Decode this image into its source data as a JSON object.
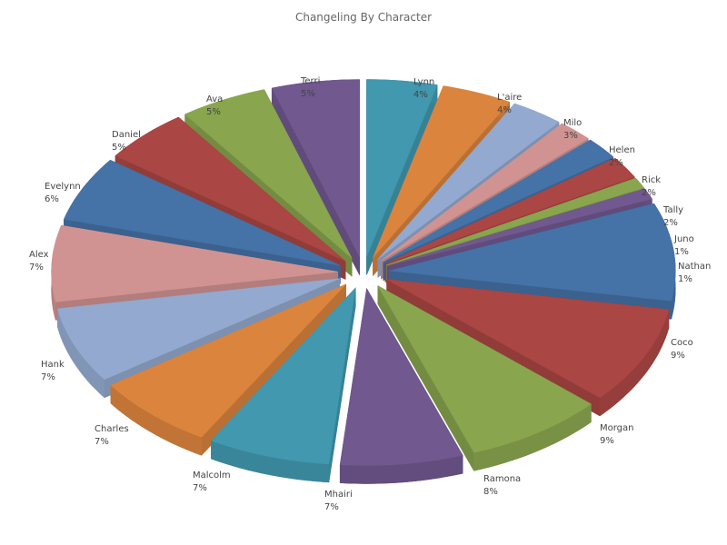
{
  "chart_data": {
    "type": "pie",
    "variant": "3d-exploded",
    "title": "Changeling By Character",
    "slices": [
      {
        "label": "Lynn",
        "value": 4,
        "color": "#4198AF"
      },
      {
        "label": "L'aire",
        "value": 4,
        "color": "#DB843D"
      },
      {
        "label": "Milo",
        "value": 3,
        "color": "#93A9CF"
      },
      {
        "label": "Helen",
        "value": 2,
        "color": "#D19392"
      },
      {
        "label": "Rick",
        "value": 2,
        "color": "#4572A7"
      },
      {
        "label": "Tally",
        "value": 2,
        "color": "#AA4643"
      },
      {
        "label": "Juno",
        "value": 1,
        "color": "#89A54E"
      },
      {
        "label": "Nathan",
        "value": 1,
        "color": "#71588F"
      },
      {
        "label": "Coco",
        "value": 9,
        "color": "#4572A7"
      },
      {
        "label": "Morgan",
        "value": 9,
        "color": "#AA4643"
      },
      {
        "label": "Ramona",
        "value": 8,
        "color": "#89A54E"
      },
      {
        "label": "Mhairi",
        "value": 7,
        "color": "#71588F"
      },
      {
        "label": "Malcolm",
        "value": 7,
        "color": "#4198AF"
      },
      {
        "label": "Charles",
        "value": 7,
        "color": "#DB843D"
      },
      {
        "label": "Hank",
        "value": 7,
        "color": "#93A9CF"
      },
      {
        "label": "Alex",
        "value": 7,
        "color": "#D19392"
      },
      {
        "label": "Evelynn",
        "value": 6,
        "color": "#4572A7"
      },
      {
        "label": "Daniel",
        "value": 5,
        "color": "#AA4643"
      },
      {
        "label": "Ava",
        "value": 5,
        "color": "#89A54E"
      },
      {
        "label": "Terri",
        "value": 5,
        "color": "#71588F"
      }
    ],
    "unit": "%"
  }
}
